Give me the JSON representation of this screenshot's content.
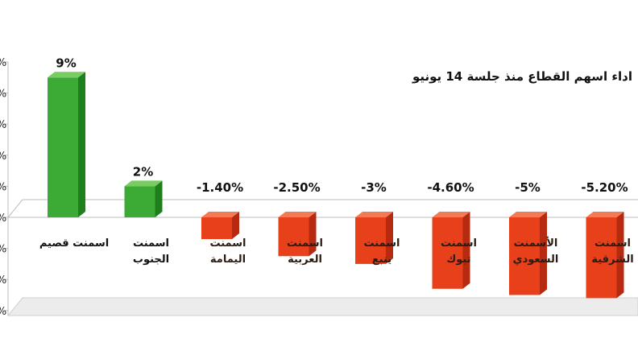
{
  "chart_data": {
    "type": "bar",
    "title": "اداء اسهم القطاع منذ جلسة 14 يونيو",
    "xlabel": "",
    "ylabel": "",
    "categories": [
      "اسمنت قصيم",
      "اسمنت الجنوب",
      "اسمنت اليمامة",
      "اسمنت العربية",
      "اسمنت ينبع",
      "اسمنت تبوك",
      "الأسمنت السعودي",
      "اسمنت الشرقية"
    ],
    "values": [
      9,
      2,
      -1.4,
      -2.5,
      -3,
      -4.6,
      -5,
      -5.2
    ],
    "data_labels": [
      "9%",
      "2%",
      "-1.40%",
      "-2.50%",
      "-3%",
      "-4.60%",
      "-5%",
      "-5.20%"
    ],
    "ylim": [
      -6,
      10
    ],
    "y_ticks": [
      -6,
      -4,
      -2,
      0,
      2,
      4,
      6,
      8,
      10
    ],
    "y_tick_labels": [
      "%",
      "%",
      "%",
      "%",
      "%",
      "%",
      "%",
      "%",
      "%"
    ],
    "grid": false,
    "legend": "none",
    "colors": {
      "positive_front": "#3cab35",
      "positive_side": "#1f7f1c",
      "positive_top": "#79cc62",
      "negative_front": "#e8401a",
      "negative_side": "#b52a10",
      "negative_top": "#f27a55",
      "floor": "#cfcfcf",
      "axis": "#bdbdbd"
    }
  }
}
